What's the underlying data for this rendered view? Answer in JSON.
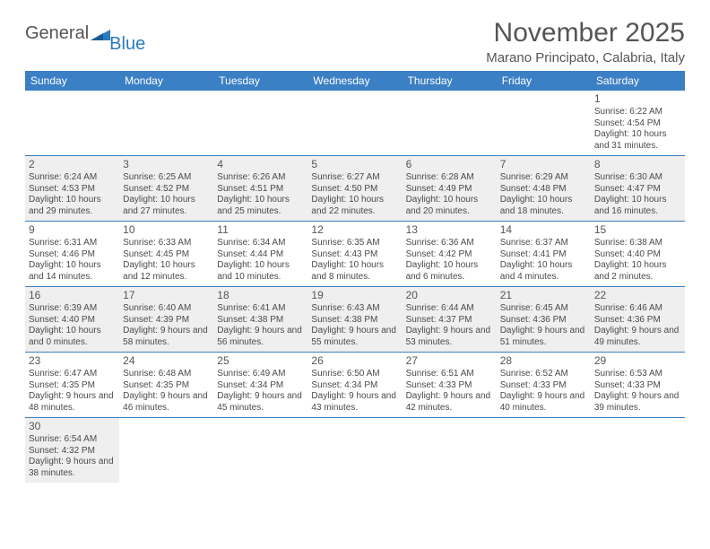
{
  "logo": {
    "general": "General",
    "blue": "Blue"
  },
  "title": "November 2025",
  "subtitle": "Marano Principato, Calabria, Italy",
  "header_bg": "#3b7fc4",
  "header_fg": "#ffffff",
  "gray_bg": "#efefef",
  "days": [
    "Sunday",
    "Monday",
    "Tuesday",
    "Wednesday",
    "Thursday",
    "Friday",
    "Saturday"
  ],
  "weeks": [
    [
      {
        "n": "",
        "empty": true
      },
      {
        "n": "",
        "empty": true
      },
      {
        "n": "",
        "empty": true
      },
      {
        "n": "",
        "empty": true
      },
      {
        "n": "",
        "empty": true
      },
      {
        "n": "",
        "empty": true
      },
      {
        "n": "1",
        "sr": "Sunrise: 6:22 AM",
        "ss": "Sunset: 4:54 PM",
        "dl": "Daylight: 10 hours and 31 minutes."
      }
    ],
    [
      {
        "n": "2",
        "sr": "Sunrise: 6:24 AM",
        "ss": "Sunset: 4:53 PM",
        "dl": "Daylight: 10 hours and 29 minutes.",
        "gray": true
      },
      {
        "n": "3",
        "sr": "Sunrise: 6:25 AM",
        "ss": "Sunset: 4:52 PM",
        "dl": "Daylight: 10 hours and 27 minutes.",
        "gray": true
      },
      {
        "n": "4",
        "sr": "Sunrise: 6:26 AM",
        "ss": "Sunset: 4:51 PM",
        "dl": "Daylight: 10 hours and 25 minutes.",
        "gray": true
      },
      {
        "n": "5",
        "sr": "Sunrise: 6:27 AM",
        "ss": "Sunset: 4:50 PM",
        "dl": "Daylight: 10 hours and 22 minutes.",
        "gray": true
      },
      {
        "n": "6",
        "sr": "Sunrise: 6:28 AM",
        "ss": "Sunset: 4:49 PM",
        "dl": "Daylight: 10 hours and 20 minutes.",
        "gray": true
      },
      {
        "n": "7",
        "sr": "Sunrise: 6:29 AM",
        "ss": "Sunset: 4:48 PM",
        "dl": "Daylight: 10 hours and 18 minutes.",
        "gray": true
      },
      {
        "n": "8",
        "sr": "Sunrise: 6:30 AM",
        "ss": "Sunset: 4:47 PM",
        "dl": "Daylight: 10 hours and 16 minutes.",
        "gray": true
      }
    ],
    [
      {
        "n": "9",
        "sr": "Sunrise: 6:31 AM",
        "ss": "Sunset: 4:46 PM",
        "dl": "Daylight: 10 hours and 14 minutes."
      },
      {
        "n": "10",
        "sr": "Sunrise: 6:33 AM",
        "ss": "Sunset: 4:45 PM",
        "dl": "Daylight: 10 hours and 12 minutes."
      },
      {
        "n": "11",
        "sr": "Sunrise: 6:34 AM",
        "ss": "Sunset: 4:44 PM",
        "dl": "Daylight: 10 hours and 10 minutes."
      },
      {
        "n": "12",
        "sr": "Sunrise: 6:35 AM",
        "ss": "Sunset: 4:43 PM",
        "dl": "Daylight: 10 hours and 8 minutes."
      },
      {
        "n": "13",
        "sr": "Sunrise: 6:36 AM",
        "ss": "Sunset: 4:42 PM",
        "dl": "Daylight: 10 hours and 6 minutes."
      },
      {
        "n": "14",
        "sr": "Sunrise: 6:37 AM",
        "ss": "Sunset: 4:41 PM",
        "dl": "Daylight: 10 hours and 4 minutes."
      },
      {
        "n": "15",
        "sr": "Sunrise: 6:38 AM",
        "ss": "Sunset: 4:40 PM",
        "dl": "Daylight: 10 hours and 2 minutes."
      }
    ],
    [
      {
        "n": "16",
        "sr": "Sunrise: 6:39 AM",
        "ss": "Sunset: 4:40 PM",
        "dl": "Daylight: 10 hours and 0 minutes.",
        "gray": true
      },
      {
        "n": "17",
        "sr": "Sunrise: 6:40 AM",
        "ss": "Sunset: 4:39 PM",
        "dl": "Daylight: 9 hours and 58 minutes.",
        "gray": true
      },
      {
        "n": "18",
        "sr": "Sunrise: 6:41 AM",
        "ss": "Sunset: 4:38 PM",
        "dl": "Daylight: 9 hours and 56 minutes.",
        "gray": true
      },
      {
        "n": "19",
        "sr": "Sunrise: 6:43 AM",
        "ss": "Sunset: 4:38 PM",
        "dl": "Daylight: 9 hours and 55 minutes.",
        "gray": true
      },
      {
        "n": "20",
        "sr": "Sunrise: 6:44 AM",
        "ss": "Sunset: 4:37 PM",
        "dl": "Daylight: 9 hours and 53 minutes.",
        "gray": true
      },
      {
        "n": "21",
        "sr": "Sunrise: 6:45 AM",
        "ss": "Sunset: 4:36 PM",
        "dl": "Daylight: 9 hours and 51 minutes.",
        "gray": true
      },
      {
        "n": "22",
        "sr": "Sunrise: 6:46 AM",
        "ss": "Sunset: 4:36 PM",
        "dl": "Daylight: 9 hours and 49 minutes.",
        "gray": true
      }
    ],
    [
      {
        "n": "23",
        "sr": "Sunrise: 6:47 AM",
        "ss": "Sunset: 4:35 PM",
        "dl": "Daylight: 9 hours and 48 minutes."
      },
      {
        "n": "24",
        "sr": "Sunrise: 6:48 AM",
        "ss": "Sunset: 4:35 PM",
        "dl": "Daylight: 9 hours and 46 minutes."
      },
      {
        "n": "25",
        "sr": "Sunrise: 6:49 AM",
        "ss": "Sunset: 4:34 PM",
        "dl": "Daylight: 9 hours and 45 minutes."
      },
      {
        "n": "26",
        "sr": "Sunrise: 6:50 AM",
        "ss": "Sunset: 4:34 PM",
        "dl": "Daylight: 9 hours and 43 minutes."
      },
      {
        "n": "27",
        "sr": "Sunrise: 6:51 AM",
        "ss": "Sunset: 4:33 PM",
        "dl": "Daylight: 9 hours and 42 minutes."
      },
      {
        "n": "28",
        "sr": "Sunrise: 6:52 AM",
        "ss": "Sunset: 4:33 PM",
        "dl": "Daylight: 9 hours and 40 minutes."
      },
      {
        "n": "29",
        "sr": "Sunrise: 6:53 AM",
        "ss": "Sunset: 4:33 PM",
        "dl": "Daylight: 9 hours and 39 minutes."
      }
    ],
    [
      {
        "n": "30",
        "sr": "Sunrise: 6:54 AM",
        "ss": "Sunset: 4:32 PM",
        "dl": "Daylight: 9 hours and 38 minutes.",
        "gray": true
      },
      {
        "n": "",
        "empty": true
      },
      {
        "n": "",
        "empty": true
      },
      {
        "n": "",
        "empty": true
      },
      {
        "n": "",
        "empty": true
      },
      {
        "n": "",
        "empty": true
      },
      {
        "n": "",
        "empty": true
      }
    ]
  ]
}
